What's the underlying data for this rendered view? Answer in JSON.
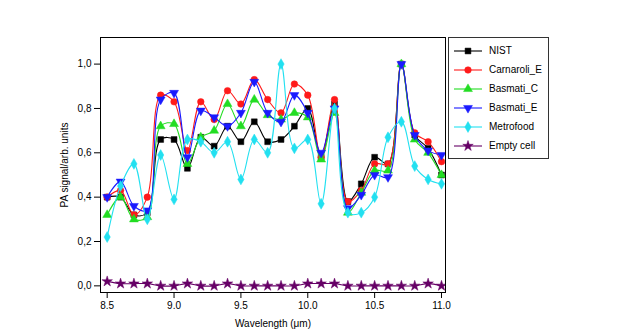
{
  "chart_data": {
    "type": "line",
    "x_label": "Wavelength (μm)",
    "y_label": "PA signal/arb. units",
    "xlim": [
      8.45,
      11.03
    ],
    "xticks": [
      {
        "value": 8.5,
        "label": "8.5"
      },
      {
        "value": 9.0,
        "label": "9.0"
      },
      {
        "value": 9.5,
        "label": "9.5"
      },
      {
        "value": 10.0,
        "label": "10.0"
      },
      {
        "value": 10.5,
        "label": "10.5"
      },
      {
        "value": 11.0,
        "label": "11.0"
      }
    ],
    "ylim": [
      -0.03,
      1.12
    ],
    "yticks": [
      {
        "value": 0,
        "label": "0,0"
      },
      {
        "value": 0.2,
        "label": "0,2"
      },
      {
        "value": 0.4,
        "label": "0,4"
      },
      {
        "value": 0.6,
        "label": "0,6"
      },
      {
        "value": 0.8,
        "label": "0,8"
      },
      {
        "value": 1.0,
        "label": "1,0"
      }
    ],
    "grid": false,
    "legend": "right",
    "x": [
      8.5,
      8.6,
      8.7,
      8.8,
      8.9,
      9.0,
      9.1,
      9.2,
      9.3,
      9.4,
      9.5,
      9.6,
      9.7,
      9.8,
      9.9,
      10.0,
      10.1,
      10.2,
      10.3,
      10.4,
      10.5,
      10.6,
      10.7,
      10.8,
      10.9,
      11.0
    ],
    "series": [
      {
        "name": "NIST",
        "color": "#000000",
        "marker": "square",
        "values": [
          0.4,
          0.4,
          0.32,
          0.33,
          0.66,
          0.66,
          0.53,
          0.67,
          0.63,
          0.72,
          0.65,
          0.74,
          0.65,
          0.66,
          0.72,
          0.8,
          0.58,
          0.82,
          0.38,
          0.46,
          0.58,
          0.55,
          1.0,
          0.68,
          0.62,
          0.5
        ]
      },
      {
        "name": "Carnaroli_E",
        "color": "#ff1a1a",
        "marker": "circle",
        "values": [
          0.4,
          0.43,
          0.32,
          0.4,
          0.86,
          0.83,
          0.61,
          0.83,
          0.75,
          0.88,
          0.82,
          0.93,
          0.84,
          0.78,
          0.91,
          0.86,
          0.58,
          0.84,
          0.38,
          0.43,
          0.55,
          0.55,
          1.0,
          0.69,
          0.65,
          0.56
        ]
      },
      {
        "name": "Basmati_C",
        "color": "#22dd22",
        "marker": "triangle",
        "values": [
          0.32,
          0.4,
          0.3,
          0.31,
          0.72,
          0.73,
          0.55,
          0.67,
          0.7,
          0.82,
          0.72,
          0.84,
          0.77,
          0.75,
          0.78,
          0.76,
          0.57,
          0.78,
          0.33,
          0.42,
          0.52,
          0.52,
          1.0,
          0.66,
          0.6,
          0.5
        ]
      },
      {
        "name": "Basmati_E",
        "color": "#1a1aff",
        "marker": "triangle-down",
        "values": [
          0.4,
          0.47,
          0.36,
          0.34,
          0.84,
          0.87,
          0.58,
          0.79,
          0.76,
          0.72,
          0.78,
          0.92,
          0.78,
          0.74,
          0.86,
          0.78,
          0.6,
          0.8,
          0.35,
          0.41,
          0.5,
          0.49,
          1.0,
          0.68,
          0.61,
          0.59
        ]
      },
      {
        "name": "Metrofood",
        "color": "#22e0f0",
        "marker": "diamond",
        "values": [
          0.22,
          0.45,
          0.55,
          0.3,
          0.59,
          0.39,
          0.66,
          0.65,
          0.6,
          0.65,
          0.48,
          0.66,
          0.6,
          1.0,
          0.62,
          0.66,
          0.37,
          0.8,
          0.33,
          0.33,
          0.4,
          0.67,
          0.74,
          0.54,
          0.48,
          0.46
        ]
      },
      {
        "name": "Empty cell",
        "color": "#660066",
        "marker": "star",
        "values": [
          0.02,
          0.01,
          0.01,
          0.01,
          0.0,
          0.0,
          0.01,
          0.0,
          0.0,
          0.01,
          0.0,
          0.0,
          0.0,
          0.0,
          0.0,
          0.01,
          0.01,
          0.01,
          0.0,
          0.0,
          0.0,
          0.0,
          0.0,
          0.0,
          0.01,
          0.0
        ]
      }
    ]
  }
}
